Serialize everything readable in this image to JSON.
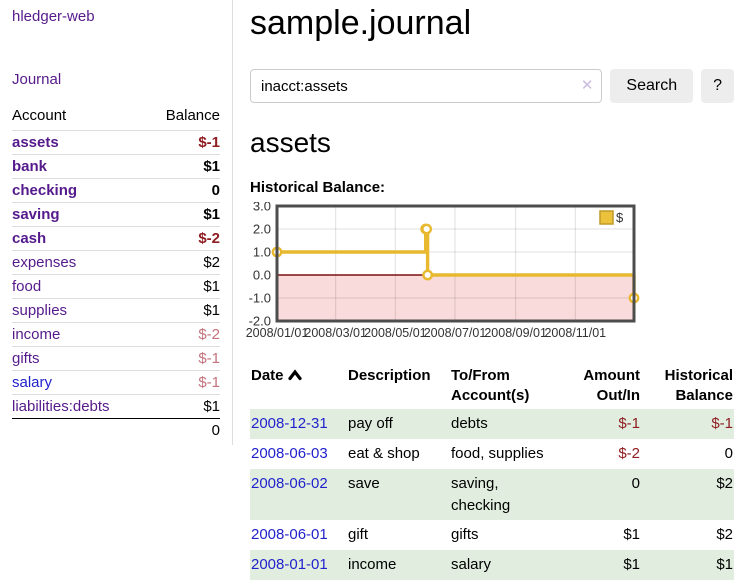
{
  "sidebar": {
    "app_title": "hledger-web",
    "nav": {
      "journal": "Journal"
    },
    "accounts": {
      "headers": {
        "account": "Account",
        "balance": "Balance"
      },
      "rows": [
        {
          "account": "assets",
          "balance": "$-1",
          "indent": 1,
          "bold": true,
          "neg": "strong",
          "blue": false
        },
        {
          "account": "bank",
          "balance": "$1",
          "indent": 2,
          "bold": true,
          "neg": "none",
          "blue": false
        },
        {
          "account": "checking",
          "balance": "0",
          "indent": 3,
          "bold": true,
          "neg": "none",
          "blue": false
        },
        {
          "account": "saving",
          "balance": "$1",
          "indent": 3,
          "bold": true,
          "neg": "none",
          "blue": false
        },
        {
          "account": "cash",
          "balance": "$-2",
          "indent": 2,
          "bold": true,
          "neg": "strong",
          "blue": false
        },
        {
          "account": "expenses",
          "balance": "$2",
          "indent": 1,
          "bold": false,
          "neg": "none",
          "blue": false
        },
        {
          "account": "food",
          "balance": "$1",
          "indent": 2,
          "bold": false,
          "neg": "none",
          "blue": false
        },
        {
          "account": "supplies",
          "balance": "$1",
          "indent": 2,
          "bold": false,
          "neg": "none",
          "blue": false
        },
        {
          "account": "income",
          "balance": "$-2",
          "indent": 1,
          "bold": false,
          "neg": "soft",
          "blue": false
        },
        {
          "account": "gifts",
          "balance": "$-1",
          "indent": 2,
          "bold": false,
          "neg": "soft",
          "blue": false
        },
        {
          "account": "salary",
          "balance": "$-1",
          "indent": 2,
          "bold": false,
          "neg": "soft",
          "blue": true
        },
        {
          "account": "liabilities:debts",
          "balance": "$1",
          "indent": 1,
          "bold": false,
          "neg": "none",
          "blue": false
        }
      ],
      "total": "0"
    }
  },
  "main": {
    "title": "sample.journal",
    "search": {
      "value": "inacct:assets",
      "clear_icon": "✕",
      "search_button": "Search",
      "help_button": "?"
    },
    "account_heading": "assets",
    "section_label": "Historical Balance:",
    "register": {
      "headers": [
        "Date",
        "Description",
        "To/From Account(s)",
        "Amount Out/In",
        "Historical Balance"
      ],
      "sort_icon": "chevron-up",
      "rows": [
        {
          "date": "2008-12-31",
          "description": "pay off",
          "accounts": "debts",
          "amount": "$-1",
          "amount_neg": true,
          "balance": "$-1",
          "balance_neg": true
        },
        {
          "date": "2008-06-03",
          "description": "eat & shop",
          "accounts": "food, supplies",
          "amount": "$-2",
          "amount_neg": true,
          "balance": "0",
          "balance_neg": false
        },
        {
          "date": "2008-06-02",
          "description": "save",
          "accounts": "saving, checking",
          "amount": "0",
          "amount_neg": false,
          "balance": "$2",
          "balance_neg": false
        },
        {
          "date": "2008-06-01",
          "description": "gift",
          "accounts": "gifts",
          "amount": "$1",
          "amount_neg": false,
          "balance": "$2",
          "balance_neg": false
        },
        {
          "date": "2008-01-01",
          "description": "income",
          "accounts": "salary",
          "amount": "$1",
          "amount_neg": false,
          "balance": "$1",
          "balance_neg": false
        }
      ]
    }
  },
  "colors": {
    "link_purple": "#551a8b",
    "link_blue": "#2222cc",
    "negative_strong": "#8f1d21",
    "negative_soft": "#c4717c",
    "row_green": "#e1eedf",
    "series_gold": "#e8b92f",
    "chart_negative_fill": "#fadbdb",
    "chart_zero_line": "#7b1010"
  },
  "chart_data": {
    "type": "line",
    "step": true,
    "title": "Historical Balance",
    "legend": [
      {
        "label": "$",
        "color": "#ecc23d",
        "border": "#bf9a26"
      }
    ],
    "legend_position": "top-right",
    "grid": true,
    "x_start": "2008-01-01",
    "x_end": "2008-12-31",
    "ylim": [
      -2,
      3
    ],
    "yticks": [
      "3.0",
      "2.0",
      "1.0",
      "0.0",
      "-1.0",
      "-2.0"
    ],
    "xtick_labels": [
      "2008/01/01",
      "2008/03/01",
      "2008/05/01",
      "2008/07/01",
      "2008/09/01",
      "2008/11/01"
    ],
    "series": [
      {
        "name": "$",
        "color": "#e8b92f",
        "points": [
          {
            "date": "2008-01-01",
            "value": 1
          },
          {
            "date": "2008-06-01",
            "value": 2
          },
          {
            "date": "2008-06-02",
            "value": 2
          },
          {
            "date": "2008-06-03",
            "value": 0
          },
          {
            "date": "2008-12-31",
            "value": -1
          }
        ]
      }
    ],
    "negative_fill": "#fadbdb",
    "zero_line_color": "#7b1010"
  }
}
